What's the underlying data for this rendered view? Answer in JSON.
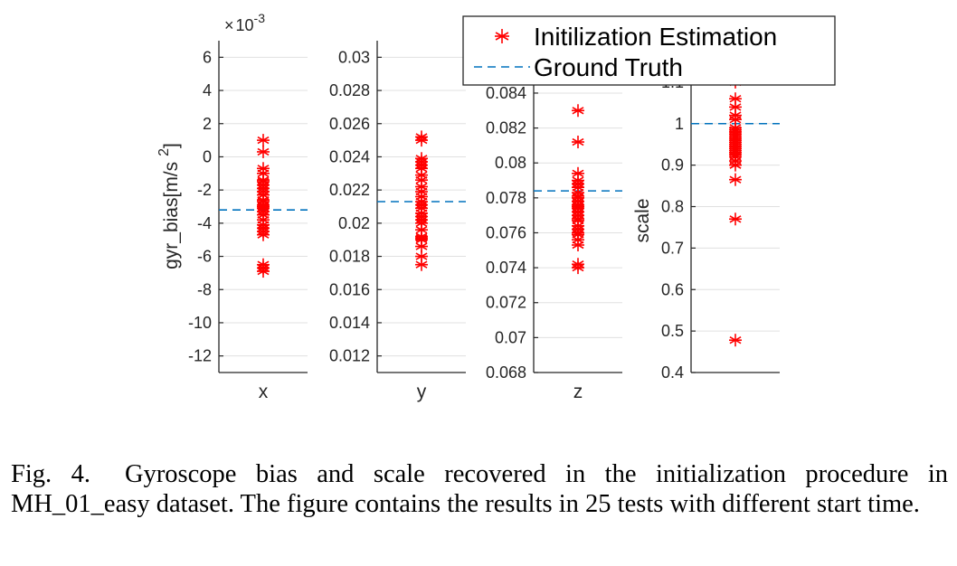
{
  "chart_data": [
    {
      "type": "scatter",
      "panel": "x",
      "xlabel": "x",
      "ylabel": "gyr_bias[m/s",
      "ylabel_sup": "2",
      "ylabel_tail": "]",
      "exponent_times": "×",
      "exponent_base": "10",
      "exponent_power": "-3",
      "ylim": [
        -13,
        7
      ],
      "yticks": [
        6,
        4,
        2,
        0,
        -2,
        -4,
        -6,
        -8,
        -10,
        -12
      ],
      "ytick_labels": [
        "6",
        "4",
        "2",
        "0",
        "-2",
        "-4",
        "-6",
        "-8",
        "-10",
        "-12"
      ],
      "grid": true,
      "ground_truth": -3.2,
      "estimates": [
        1.0,
        0.3,
        -0.7,
        -1.0,
        -1.4,
        -1.5,
        -1.7,
        -2.1,
        -2.6,
        -2.7,
        -2.9,
        -3.0,
        -3.1,
        -3.3,
        -3.5,
        -4.1,
        -4.3,
        -4.5,
        -4.7,
        -6.5,
        -6.7,
        -6.9,
        -3.8,
        -2.3,
        -1.9
      ]
    },
    {
      "type": "scatter",
      "panel": "y",
      "xlabel": "y",
      "ylim": [
        0.011,
        0.031
      ],
      "yticks": [
        0.03,
        0.028,
        0.026,
        0.024,
        0.022,
        0.02,
        0.018,
        0.016,
        0.014,
        0.012
      ],
      "ytick_labels": [
        "0.03",
        "0.028",
        "0.026",
        "0.024",
        "0.022",
        "0.02",
        "0.018",
        "0.016",
        "0.014",
        "0.012"
      ],
      "grid": true,
      "ground_truth": 0.0213,
      "estimates": [
        0.0252,
        0.025,
        0.0239,
        0.0237,
        0.0235,
        0.0229,
        0.0226,
        0.0222,
        0.0216,
        0.0213,
        0.0209,
        0.0206,
        0.0204,
        0.0202,
        0.02,
        0.0196,
        0.0192,
        0.019,
        0.0186,
        0.018,
        0.0175,
        0.0233,
        0.0219,
        0.0211,
        0.0191
      ]
    },
    {
      "type": "scatter",
      "panel": "z",
      "xlabel": "z",
      "ylim": [
        0.068,
        0.087
      ],
      "yticks": [
        0.084,
        0.082,
        0.08,
        0.078,
        0.076,
        0.074,
        0.072,
        0.07,
        0.068
      ],
      "ytick_labels": [
        "0.084",
        "0.082",
        "0.08",
        "0.078",
        "0.076",
        "0.074",
        "0.072",
        "0.07",
        "0.068"
      ],
      "grid": true,
      "ground_truth": 0.0784,
      "estimates": [
        0.083,
        0.0812,
        0.0794,
        0.079,
        0.0786,
        0.0783,
        0.078,
        0.0778,
        0.0776,
        0.0774,
        0.0772,
        0.077,
        0.0767,
        0.0764,
        0.0762,
        0.0759,
        0.0756,
        0.0753,
        0.0742,
        0.074,
        0.0788,
        0.0781,
        0.0775,
        0.0768,
        0.076
      ]
    },
    {
      "type": "scatter",
      "panel": "scale",
      "xlabel": "",
      "ylabel": "scale",
      "ylim": [
        0.4,
        1.2
      ],
      "yticks": [
        1.1,
        1.0,
        0.9,
        0.8,
        0.7,
        0.6,
        0.5,
        0.4
      ],
      "ytick_labels": [
        "1.1",
        "1",
        "0.9",
        "0.8",
        "0.7",
        "0.6",
        "0.5",
        "0.4"
      ],
      "grid": true,
      "ground_truth": 1.0,
      "estimates": [
        1.1,
        1.06,
        1.04,
        1.02,
        1.01,
        0.99,
        0.98,
        0.975,
        0.97,
        0.965,
        0.96,
        0.955,
        0.95,
        0.94,
        0.935,
        0.93,
        0.925,
        0.92,
        0.91,
        0.9,
        0.865,
        0.77,
        0.478,
        0.985,
        0.945
      ]
    }
  ],
  "legend": {
    "position": "top-right",
    "items": [
      {
        "label": "Initilization Estimation",
        "marker": "*",
        "color": "#ff0000"
      },
      {
        "label": "Ground Truth",
        "style": "dashed",
        "color": "#0072bd"
      }
    ]
  },
  "colors": {
    "estimate": "#ff0000",
    "ground_truth": "#0072bd",
    "grid": "#e0e0e0",
    "axis": "#262626"
  },
  "caption": {
    "label": "Fig. 4.",
    "text": "Gyroscope bias and scale recovered in the initialization procedure in MH_01_easy dataset. The figure contains the results in 25 tests with different start time."
  }
}
